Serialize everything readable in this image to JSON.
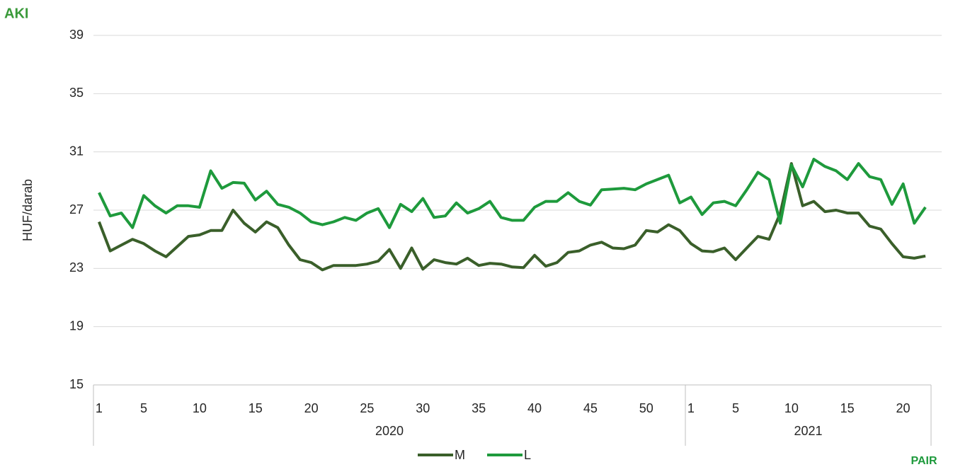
{
  "logo": "AKI",
  "footer_logo": "PAIR",
  "chart_data": {
    "type": "line",
    "y_label": "HUF/darab",
    "categories": [
      "1",
      null,
      null,
      null,
      "5",
      null,
      null,
      null,
      null,
      "10",
      null,
      null,
      null,
      null,
      "15",
      null,
      null,
      null,
      null,
      "20",
      null,
      null,
      null,
      null,
      "25",
      null,
      null,
      null,
      null,
      "30",
      null,
      null,
      null,
      null,
      "35",
      null,
      null,
      null,
      null,
      "40",
      null,
      null,
      null,
      null,
      "45",
      null,
      null,
      null,
      null,
      "50",
      null,
      null,
      null,
      "1",
      null,
      null,
      null,
      "5",
      null,
      null,
      null,
      null,
      "10",
      null,
      null,
      null,
      null,
      "15",
      null,
      null,
      null,
      null,
      "20",
      null,
      null
    ],
    "groups": [
      {
        "label": "2020",
        "count": 53
      },
      {
        "label": "2021",
        "count": 22
      }
    ],
    "series": [
      {
        "name": "M",
        "color": "#3a5f2a",
        "values": [
          26.2,
          24.2,
          24.6,
          25.0,
          24.7,
          24.2,
          23.8,
          24.5,
          25.2,
          25.3,
          25.6,
          25.6,
          27.0,
          26.1,
          25.5,
          26.2,
          25.8,
          24.6,
          23.6,
          23.4,
          22.9,
          23.2,
          23.2,
          23.2,
          23.3,
          23.5,
          24.3,
          23.0,
          24.4,
          22.95,
          23.6,
          23.4,
          23.3,
          23.7,
          23.2,
          23.35,
          23.3,
          23.1,
          23.05,
          23.9,
          23.15,
          23.4,
          24.1,
          24.2,
          24.6,
          24.8,
          24.4,
          24.35,
          24.6,
          25.6,
          25.5,
          26.0,
          25.6,
          24.7,
          24.2,
          24.15,
          24.4,
          23.6,
          24.4,
          25.2,
          25.0,
          26.8,
          30.2,
          27.3,
          27.6,
          26.9,
          27.0,
          26.8,
          26.8,
          25.9,
          25.7,
          24.7,
          23.8,
          23.7,
          23.85
        ]
      },
      {
        "name": "L",
        "color": "#1e9a3c",
        "values": [
          28.2,
          26.6,
          26.8,
          25.8,
          28.0,
          27.3,
          26.8,
          27.3,
          27.3,
          27.2,
          29.7,
          28.5,
          28.9,
          28.85,
          27.7,
          28.3,
          27.4,
          27.2,
          26.8,
          26.2,
          26.0,
          26.2,
          26.5,
          26.3,
          26.8,
          27.1,
          25.8,
          27.4,
          26.9,
          27.8,
          26.5,
          26.6,
          27.5,
          26.8,
          27.1,
          27.6,
          26.5,
          26.3,
          26.3,
          27.2,
          27.6,
          27.6,
          28.2,
          27.6,
          27.35,
          28.4,
          28.45,
          28.5,
          28.4,
          28.8,
          29.1,
          29.4,
          27.5,
          27.9,
          26.7,
          27.5,
          27.6,
          27.3,
          28.4,
          29.6,
          29.1,
          26.1,
          30.1,
          28.6,
          30.5,
          30.0,
          29.7,
          29.1,
          30.2,
          29.3,
          29.1,
          27.4,
          28.8,
          26.1,
          27.2
        ]
      }
    ],
    "ylim": [
      15,
      39
    ],
    "yticks": [
      15,
      19,
      23,
      27,
      31,
      35,
      39
    ],
    "grid": true,
    "legend": "bottom"
  }
}
